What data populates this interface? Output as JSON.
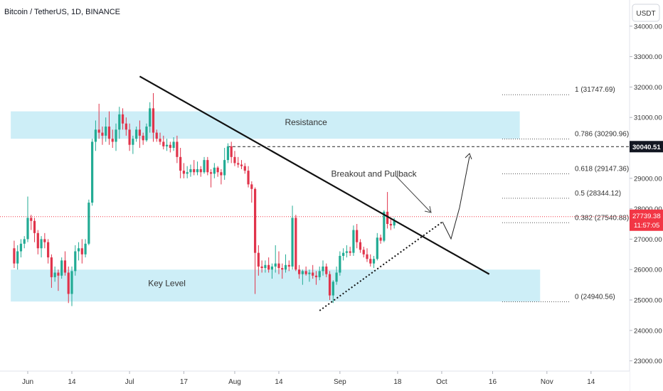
{
  "header": {
    "symbol_title": "Bitcoin / TetherUS, 1D, BINANCE",
    "currency_button": "USDT"
  },
  "colors": {
    "up": "#22ab94",
    "down": "#e0344b",
    "zone": "#cdeef7",
    "trend": "#111111",
    "price_tag": "#f23645",
    "level_tag": "#131722",
    "axis_text": "#333333"
  },
  "chart_data": {
    "type": "candlestick",
    "title": "Bitcoin / TetherUS, 1D, BINANCE",
    "y_axis": {
      "range": [
        22600,
        34500
      ],
      "ticks": [
        34000,
        33000,
        32000,
        31000,
        30000,
        29000,
        28000,
        27000,
        26000,
        25000,
        24000,
        23000
      ],
      "tick_labels": [
        "34000.00",
        "33000.00",
        "32000.00",
        "31000.00",
        "30000.00",
        "29000.00",
        "28000.00",
        "27000.00",
        "26000.00",
        "25000.00",
        "24000.00",
        "23000.00"
      ]
    },
    "x_axis": {
      "ticks": [
        {
          "label": "Jun",
          "day": 1
        },
        {
          "label": "14",
          "day": 14
        },
        {
          "label": "Jul",
          "day": 31
        },
        {
          "label": "17",
          "day": 47
        },
        {
          "label": "Aug",
          "day": 62
        },
        {
          "label": "14",
          "day": 75
        },
        {
          "label": "Sep",
          "day": 93
        },
        {
          "label": "18",
          "day": 110
        },
        {
          "label": "Oct",
          "day": 123
        },
        {
          "label": "16",
          "day": 138
        },
        {
          "label": "Nov",
          "day": 154
        },
        {
          "label": "14",
          "day": 167
        }
      ]
    },
    "candles": [
      {
        "day": -3,
        "o": 26700,
        "h": 26950,
        "l": 26050,
        "c": 26200
      },
      {
        "day": -2,
        "o": 26200,
        "h": 26800,
        "l": 26000,
        "c": 26600
      },
      {
        "day": -1,
        "o": 26600,
        "h": 27000,
        "l": 26400,
        "c": 26850
      },
      {
        "day": 0,
        "o": 26850,
        "h": 27100,
        "l": 26700,
        "c": 27000
      },
      {
        "day": 1,
        "o": 27000,
        "h": 28400,
        "l": 26900,
        "c": 27700
      },
      {
        "day": 2,
        "o": 27700,
        "h": 27800,
        "l": 27300,
        "c": 27600
      },
      {
        "day": 3,
        "o": 27600,
        "h": 27700,
        "l": 26900,
        "c": 27200
      },
      {
        "day": 4,
        "o": 27200,
        "h": 27300,
        "l": 26500,
        "c": 26700
      },
      {
        "day": 5,
        "o": 26700,
        "h": 27100,
        "l": 26400,
        "c": 27000
      },
      {
        "day": 6,
        "o": 27000,
        "h": 27200,
        "l": 26700,
        "c": 26900
      },
      {
        "day": 7,
        "o": 26900,
        "h": 27000,
        "l": 26200,
        "c": 26400
      },
      {
        "day": 8,
        "o": 26400,
        "h": 26500,
        "l": 25400,
        "c": 25750
      },
      {
        "day": 9,
        "o": 25750,
        "h": 26100,
        "l": 25600,
        "c": 25900
      },
      {
        "day": 10,
        "o": 25900,
        "h": 26000,
        "l": 25300,
        "c": 25800
      },
      {
        "day": 11,
        "o": 25800,
        "h": 26400,
        "l": 25700,
        "c": 26300
      },
      {
        "day": 12,
        "o": 26300,
        "h": 26600,
        "l": 25800,
        "c": 25900
      },
      {
        "day": 13,
        "o": 25900,
        "h": 26100,
        "l": 24900,
        "c": 25200
      },
      {
        "day": 14,
        "o": 25200,
        "h": 26100,
        "l": 24800,
        "c": 25950
      },
      {
        "day": 15,
        "o": 25950,
        "h": 26800,
        "l": 25800,
        "c": 26600
      },
      {
        "day": 16,
        "o": 26600,
        "h": 26900,
        "l": 26300,
        "c": 26700
      },
      {
        "day": 17,
        "o": 26700,
        "h": 27000,
        "l": 26200,
        "c": 26500
      },
      {
        "day": 18,
        "o": 26500,
        "h": 27000,
        "l": 26400,
        "c": 26850
      },
      {
        "day": 19,
        "o": 26850,
        "h": 28300,
        "l": 26800,
        "c": 28200
      },
      {
        "day": 20,
        "o": 28200,
        "h": 30300,
        "l": 28100,
        "c": 30200
      },
      {
        "day": 21,
        "o": 30200,
        "h": 30900,
        "l": 29900,
        "c": 30600
      },
      {
        "day": 22,
        "o": 30600,
        "h": 31450,
        "l": 30300,
        "c": 30500
      },
      {
        "day": 23,
        "o": 30500,
        "h": 30700,
        "l": 30100,
        "c": 30400
      },
      {
        "day": 24,
        "o": 30400,
        "h": 31000,
        "l": 30200,
        "c": 30700
      },
      {
        "day": 25,
        "o": 30700,
        "h": 31200,
        "l": 30100,
        "c": 30300
      },
      {
        "day": 26,
        "o": 30300,
        "h": 30600,
        "l": 30000,
        "c": 30200
      },
      {
        "day": 27,
        "o": 30200,
        "h": 30800,
        "l": 29900,
        "c": 30600
      },
      {
        "day": 28,
        "o": 30600,
        "h": 31350,
        "l": 30300,
        "c": 31100
      },
      {
        "day": 29,
        "o": 31100,
        "h": 31300,
        "l": 30600,
        "c": 30800
      },
      {
        "day": 30,
        "o": 30800,
        "h": 31000,
        "l": 30400,
        "c": 30600
      },
      {
        "day": 31,
        "o": 30600,
        "h": 30800,
        "l": 29900,
        "c": 30100
      },
      {
        "day": 32,
        "o": 30100,
        "h": 30400,
        "l": 29800,
        "c": 30300
      },
      {
        "day": 33,
        "o": 30300,
        "h": 30700,
        "l": 30200,
        "c": 30600
      },
      {
        "day": 34,
        "o": 30600,
        "h": 30900,
        "l": 30000,
        "c": 30400
      },
      {
        "day": 35,
        "o": 30400,
        "h": 30500,
        "l": 30100,
        "c": 30250
      },
      {
        "day": 36,
        "o": 30250,
        "h": 30800,
        "l": 30200,
        "c": 30700
      },
      {
        "day": 37,
        "o": 30700,
        "h": 31500,
        "l": 30500,
        "c": 31300
      },
      {
        "day": 38,
        "o": 31300,
        "h": 31800,
        "l": 30200,
        "c": 30500
      },
      {
        "day": 39,
        "o": 30500,
        "h": 30600,
        "l": 30200,
        "c": 30300
      },
      {
        "day": 40,
        "o": 30300,
        "h": 30500,
        "l": 30100,
        "c": 30200
      },
      {
        "day": 41,
        "o": 30200,
        "h": 30400,
        "l": 29950,
        "c": 30050
      },
      {
        "day": 42,
        "o": 30050,
        "h": 30300,
        "l": 29900,
        "c": 30100
      },
      {
        "day": 43,
        "o": 30100,
        "h": 30200,
        "l": 29850,
        "c": 30000
      },
      {
        "day": 44,
        "o": 30000,
        "h": 30350,
        "l": 29900,
        "c": 30200
      },
      {
        "day": 45,
        "o": 30200,
        "h": 30400,
        "l": 29500,
        "c": 29700
      },
      {
        "day": 46,
        "o": 29700,
        "h": 30000,
        "l": 29000,
        "c": 29250
      },
      {
        "day": 47,
        "o": 29250,
        "h": 29500,
        "l": 29000,
        "c": 29150
      },
      {
        "day": 48,
        "o": 29150,
        "h": 29400,
        "l": 29000,
        "c": 29200
      },
      {
        "day": 49,
        "o": 29200,
        "h": 29450,
        "l": 29050,
        "c": 29300
      },
      {
        "day": 50,
        "o": 29300,
        "h": 29600,
        "l": 29100,
        "c": 29200
      },
      {
        "day": 51,
        "o": 29200,
        "h": 29550,
        "l": 29100,
        "c": 29300
      },
      {
        "day": 52,
        "o": 29300,
        "h": 29400,
        "l": 29050,
        "c": 29200
      },
      {
        "day": 53,
        "o": 29200,
        "h": 29700,
        "l": 29150,
        "c": 29600
      },
      {
        "day": 54,
        "o": 29600,
        "h": 29700,
        "l": 29100,
        "c": 29200
      },
      {
        "day": 55,
        "o": 29200,
        "h": 29300,
        "l": 28700,
        "c": 29150
      },
      {
        "day": 56,
        "o": 29150,
        "h": 29500,
        "l": 29000,
        "c": 29350
      },
      {
        "day": 57,
        "o": 29350,
        "h": 29400,
        "l": 29050,
        "c": 29200
      },
      {
        "day": 58,
        "o": 29200,
        "h": 29300,
        "l": 28800,
        "c": 29100
      },
      {
        "day": 59,
        "o": 29100,
        "h": 30000,
        "l": 28950,
        "c": 29600
      },
      {
        "day": 60,
        "o": 29600,
        "h": 30150,
        "l": 29500,
        "c": 30050
      },
      {
        "day": 61,
        "o": 30050,
        "h": 30200,
        "l": 29500,
        "c": 29700
      },
      {
        "day": 62,
        "o": 29700,
        "h": 29900,
        "l": 29400,
        "c": 29500
      },
      {
        "day": 63,
        "o": 29500,
        "h": 29700,
        "l": 29350,
        "c": 29450
      },
      {
        "day": 64,
        "o": 29450,
        "h": 29600,
        "l": 29300,
        "c": 29400
      },
      {
        "day": 65,
        "o": 29400,
        "h": 29500,
        "l": 29150,
        "c": 29250
      },
      {
        "day": 66,
        "o": 29250,
        "h": 29400,
        "l": 28700,
        "c": 28800
      },
      {
        "day": 67,
        "o": 28800,
        "h": 28900,
        "l": 28200,
        "c": 28650
      },
      {
        "day": 68,
        "o": 28650,
        "h": 28700,
        "l": 25200,
        "c": 26550
      },
      {
        "day": 69,
        "o": 26550,
        "h": 26800,
        "l": 25800,
        "c": 26100
      },
      {
        "day": 70,
        "o": 26100,
        "h": 26300,
        "l": 25900,
        "c": 26050
      },
      {
        "day": 71,
        "o": 26050,
        "h": 26300,
        "l": 25900,
        "c": 26150
      },
      {
        "day": 72,
        "o": 26150,
        "h": 26400,
        "l": 25900,
        "c": 26000
      },
      {
        "day": 73,
        "o": 26000,
        "h": 26200,
        "l": 25700,
        "c": 26100
      },
      {
        "day": 74,
        "o": 26100,
        "h": 26800,
        "l": 25900,
        "c": 26200
      },
      {
        "day": 75,
        "o": 26200,
        "h": 26600,
        "l": 25850,
        "c": 26050
      },
      {
        "day": 76,
        "o": 26050,
        "h": 26200,
        "l": 25700,
        "c": 26000
      },
      {
        "day": 77,
        "o": 26000,
        "h": 26500,
        "l": 25900,
        "c": 26150
      },
      {
        "day": 78,
        "o": 26150,
        "h": 26300,
        "l": 25950,
        "c": 26100
      },
      {
        "day": 79,
        "o": 26100,
        "h": 28100,
        "l": 26000,
        "c": 27700
      },
      {
        "day": 80,
        "o": 27700,
        "h": 27800,
        "l": 25950,
        "c": 26000
      },
      {
        "day": 81,
        "o": 26000,
        "h": 26150,
        "l": 25700,
        "c": 25850
      },
      {
        "day": 82,
        "o": 25850,
        "h": 26000,
        "l": 25500,
        "c": 25950
      },
      {
        "day": 83,
        "o": 25950,
        "h": 26100,
        "l": 25800,
        "c": 25850
      },
      {
        "day": 84,
        "o": 25850,
        "h": 26000,
        "l": 25600,
        "c": 25900
      },
      {
        "day": 85,
        "o": 25900,
        "h": 26150,
        "l": 25700,
        "c": 25800
      },
      {
        "day": 86,
        "o": 25800,
        "h": 25950,
        "l": 25500,
        "c": 25750
      },
      {
        "day": 87,
        "o": 25750,
        "h": 26100,
        "l": 25650,
        "c": 25950
      },
      {
        "day": 88,
        "o": 25950,
        "h": 26300,
        "l": 25800,
        "c": 26100
      },
      {
        "day": 89,
        "o": 26100,
        "h": 26200,
        "l": 25750,
        "c": 25850
      },
      {
        "day": 90,
        "o": 25850,
        "h": 25950,
        "l": 25000,
        "c": 25150
      },
      {
        "day": 91,
        "o": 25150,
        "h": 25650,
        "l": 24900,
        "c": 25600
      },
      {
        "day": 92,
        "o": 25600,
        "h": 26100,
        "l": 25500,
        "c": 25900
      },
      {
        "day": 93,
        "o": 25900,
        "h": 26600,
        "l": 25800,
        "c": 26450
      },
      {
        "day": 94,
        "o": 26450,
        "h": 26700,
        "l": 26300,
        "c": 26550
      },
      {
        "day": 95,
        "o": 26550,
        "h": 26800,
        "l": 26400,
        "c": 26600
      },
      {
        "day": 96,
        "o": 26600,
        "h": 26750,
        "l": 26450,
        "c": 26550
      },
      {
        "day": 97,
        "o": 26550,
        "h": 27450,
        "l": 26450,
        "c": 27300
      },
      {
        "day": 98,
        "o": 27300,
        "h": 27500,
        "l": 26700,
        "c": 26900
      },
      {
        "day": 99,
        "o": 26900,
        "h": 27000,
        "l": 26550,
        "c": 26650
      },
      {
        "day": 100,
        "o": 26650,
        "h": 26750,
        "l": 26400,
        "c": 26500
      },
      {
        "day": 101,
        "o": 26500,
        "h": 26700,
        "l": 26250,
        "c": 26350
      },
      {
        "day": 102,
        "o": 26350,
        "h": 26500,
        "l": 26100,
        "c": 26200
      },
      {
        "day": 103,
        "o": 26200,
        "h": 26450,
        "l": 26050,
        "c": 26350
      },
      {
        "day": 104,
        "o": 26350,
        "h": 27200,
        "l": 26300,
        "c": 27050
      },
      {
        "day": 105,
        "o": 27050,
        "h": 27150,
        "l": 26850,
        "c": 26950
      },
      {
        "day": 106,
        "o": 26950,
        "h": 27950,
        "l": 26900,
        "c": 27900
      },
      {
        "day": 107,
        "o": 27900,
        "h": 28550,
        "l": 27350,
        "c": 27500
      },
      {
        "day": 108,
        "o": 27500,
        "h": 27700,
        "l": 27300,
        "c": 27450
      },
      {
        "day": 109,
        "o": 27450,
        "h": 27700,
        "l": 27350,
        "c": 27600
      }
    ],
    "zones": [
      {
        "label": "Resistance",
        "from": 30300,
        "to": 31200,
        "x_start_day": -4,
        "x_end_day": 146
      },
      {
        "label": "Key Level",
        "from": 24950,
        "to": 26000,
        "x_start_day": -4,
        "x_end_day": 152
      }
    ],
    "fibonacci": [
      {
        "label": "1 (31747.69)",
        "value": 31747.69
      },
      {
        "label": "0.786 (30290.96)",
        "value": 30290.96
      },
      {
        "label": "0.618 (29147.36)",
        "value": 29147.36
      },
      {
        "label": "0.5 (28344.12)",
        "value": 28344.12
      },
      {
        "label": "0.382 (27540.88)",
        "value": 27540.88
      },
      {
        "label": "0 (24940.56)",
        "value": 24940.56
      }
    ],
    "trendlines": [
      {
        "name": "descending-trendline",
        "style": "solid",
        "from": {
          "day": 34,
          "price": 32350
        },
        "to": {
          "day": 137,
          "price": 25850
        }
      },
      {
        "name": "ascending-support",
        "style": "dotted",
        "from": {
          "day": 87,
          "price": 24650
        },
        "to": {
          "day": 123,
          "price": 27550
        }
      }
    ],
    "horizontal_level": {
      "value": 30040.51,
      "label": "30040.51"
    },
    "current_price": {
      "value": 27739.38,
      "label": "27739.38",
      "countdown": "11:57:05"
    },
    "annotations": [
      {
        "text": "Resistance",
        "day": 83,
        "price": 30750
      },
      {
        "text": "Key Level",
        "day": 42,
        "price": 25450
      },
      {
        "text": "Breakout and Pullback",
        "day": 103,
        "price": 29050
      }
    ]
  }
}
